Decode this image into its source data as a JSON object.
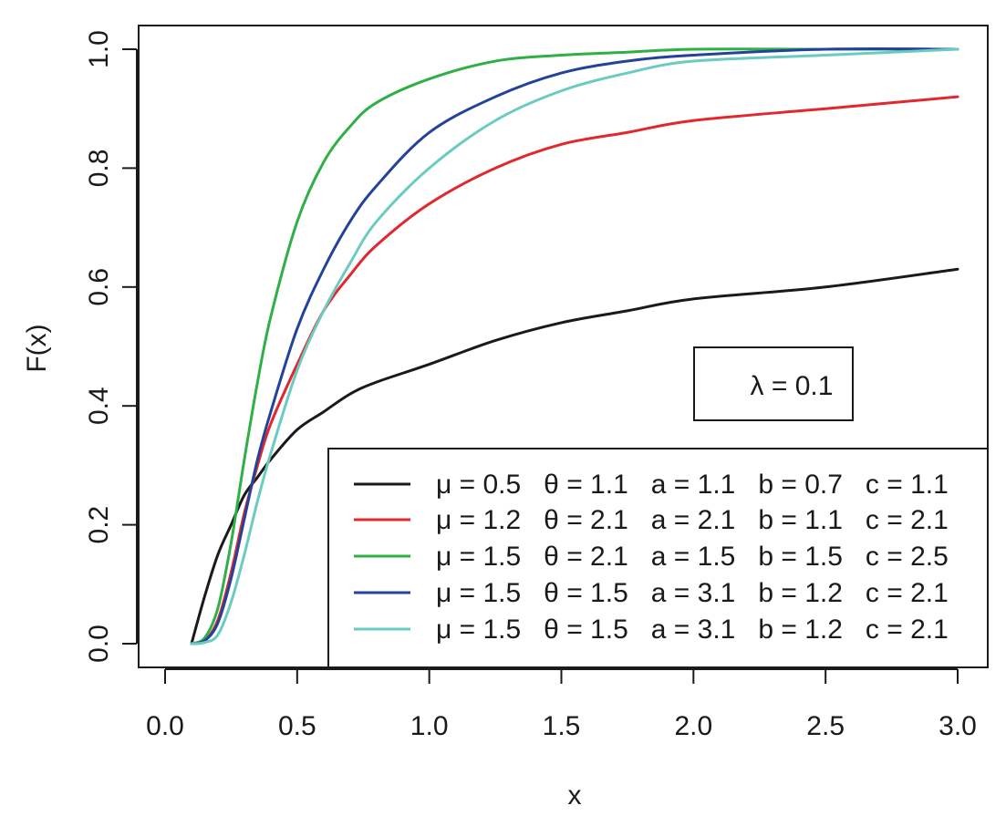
{
  "chart_data": {
    "type": "line",
    "title": "",
    "xlabel": "x",
    "ylabel": "F(x)",
    "xlim": [
      0.0,
      3.0
    ],
    "ylim": [
      0.0,
      1.0
    ],
    "grid": false,
    "legend_position": "bottom-right",
    "x_ticks": [
      "0.0",
      "0.5",
      "1.0",
      "1.5",
      "2.0",
      "2.5",
      "3.0"
    ],
    "y_ticks": [
      "0.0",
      "0.2",
      "0.4",
      "0.6",
      "0.8",
      "1.0"
    ],
    "annotation": "λ = 0.1",
    "x": [
      0.1,
      0.15,
      0.2,
      0.25,
      0.3,
      0.35,
      0.4,
      0.5,
      0.6,
      0.7,
      0.8,
      1.0,
      1.25,
      1.5,
      1.75,
      2.0,
      2.5,
      3.0
    ],
    "series": [
      {
        "name": "μ = 0.5   θ = 1.1   a = 1.1   b = 0.7   c = 1.1",
        "color": "#1a1a1a",
        "values": [
          0.0,
          0.08,
          0.15,
          0.2,
          0.25,
          0.28,
          0.31,
          0.36,
          0.39,
          0.42,
          0.44,
          0.47,
          0.51,
          0.54,
          0.56,
          0.58,
          0.6,
          0.63
        ]
      },
      {
        "name": "μ = 1.2   θ = 2.1   a = 2.1   b = 1.1   c = 2.1",
        "color": "#e0282e",
        "values": [
          0.0,
          0.005,
          0.04,
          0.12,
          0.22,
          0.3,
          0.37,
          0.47,
          0.56,
          0.62,
          0.67,
          0.74,
          0.8,
          0.84,
          0.86,
          0.88,
          0.9,
          0.92
        ]
      },
      {
        "name": "μ = 1.5   θ = 2.1   a = 1.5   b = 1.5   c = 2.5",
        "color": "#2fb046",
        "values": [
          0.0,
          0.01,
          0.06,
          0.17,
          0.31,
          0.44,
          0.55,
          0.71,
          0.81,
          0.87,
          0.91,
          0.95,
          0.98,
          0.99,
          0.995,
          1.0,
          1.0,
          1.0
        ]
      },
      {
        "name": "μ = 1.5   θ = 1.5   a = 3.1   b = 1.2   c = 2.1",
        "color": "#23429a",
        "values": [
          0.0,
          0.005,
          0.035,
          0.11,
          0.21,
          0.31,
          0.39,
          0.53,
          0.63,
          0.71,
          0.77,
          0.86,
          0.92,
          0.96,
          0.98,
          0.99,
          1.0,
          1.0
        ]
      },
      {
        "name": "μ = 1.5   θ = 1.5   a = 3.1   b = 1.2   c = 2.1",
        "color": "#6ccbc0",
        "values": [
          0.0,
          0.002,
          0.015,
          0.07,
          0.15,
          0.24,
          0.32,
          0.46,
          0.56,
          0.64,
          0.71,
          0.8,
          0.88,
          0.93,
          0.96,
          0.98,
          0.99,
          1.0
        ]
      }
    ]
  }
}
